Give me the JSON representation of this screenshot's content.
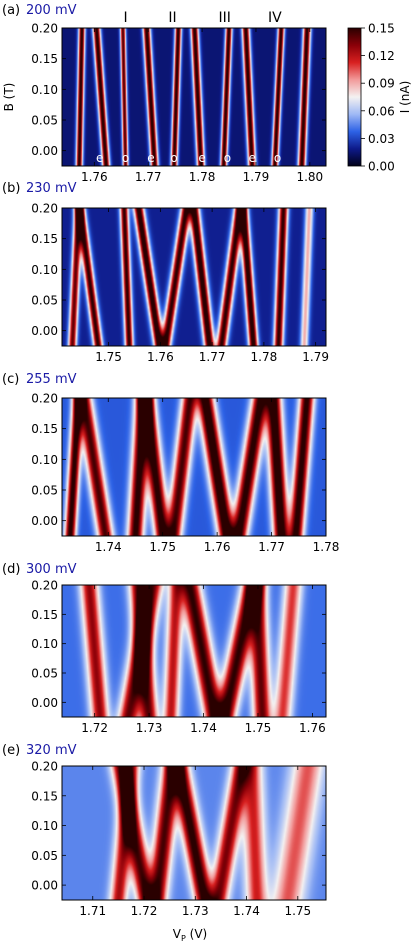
{
  "chart_data": [
    {
      "type": "heatmap",
      "panel_letter": "(a)",
      "bias_label": "200 mV",
      "xlabel": "",
      "ylabel": "B (T)",
      "xlim": [
        1.754,
        1.803
      ],
      "ylim": [
        -0.025,
        0.2
      ],
      "xticks": [
        "1.76",
        "1.77",
        "1.78",
        "1.79",
        "1.80"
      ],
      "xtick_values": [
        1.76,
        1.77,
        1.78,
        1.79,
        1.8
      ],
      "yticks": [
        "0.20",
        "0.15",
        "0.10",
        "0.05",
        "0.00"
      ],
      "ytick_values": [
        0.2,
        0.15,
        0.1,
        0.05,
        0.0
      ],
      "roman_labels": [
        {
          "text": "I",
          "x": 1.7658
        },
        {
          "text": "II",
          "x": 1.7745
        },
        {
          "text": "III",
          "x": 1.7842
        },
        {
          "text": "IV",
          "x": 1.7935
        }
      ],
      "parity_labels": [
        {
          "text": "e",
          "x": 1.761
        },
        {
          "text": "o",
          "x": 1.7658
        },
        {
          "text": "e",
          "x": 1.7705
        },
        {
          "text": "o",
          "x": 1.7748
        },
        {
          "text": "e",
          "x": 1.78
        },
        {
          "text": "o",
          "x": 1.7847
        },
        {
          "text": "e",
          "x": 1.7893
        },
        {
          "text": "o",
          "x": 1.794
        }
      ],
      "resonances": [
        {
          "x0": 1.7572,
          "dx": 0.0005,
          "w": 0.0006,
          "a": 0.14
        },
        {
          "x0": 1.7622,
          "dx": -0.0018,
          "w": 0.0007,
          "a": 0.14
        },
        {
          "x0": 1.7658,
          "dx": -0.0005,
          "w": 0.0005,
          "a": 0.13
        },
        {
          "x0": 1.7712,
          "dx": -0.0015,
          "w": 0.0007,
          "a": 0.14
        },
        {
          "x0": 1.7748,
          "dx": 0.0008,
          "w": 0.0006,
          "a": 0.14
        },
        {
          "x0": 1.7798,
          "dx": -0.0012,
          "w": 0.0007,
          "a": 0.14
        },
        {
          "x0": 1.784,
          "dx": 0.001,
          "w": 0.0006,
          "a": 0.14
        },
        {
          "x0": 1.7893,
          "dx": -0.0012,
          "w": 0.0007,
          "a": 0.14
        },
        {
          "x0": 1.7935,
          "dx": 0.0012,
          "w": 0.0006,
          "a": 0.14
        },
        {
          "x0": 1.7985,
          "dx": 0.001,
          "w": 0.0007,
          "a": 0.14
        }
      ],
      "background": 0.015
    },
    {
      "type": "heatmap",
      "panel_letter": "(b)",
      "bias_label": "230 mV",
      "xlabel": "",
      "ylabel": "",
      "xlim": [
        1.741,
        1.792
      ],
      "ylim": [
        -0.025,
        0.2
      ],
      "xticks": [
        "1.75",
        "1.76",
        "1.77",
        "1.78",
        "1.79"
      ],
      "xtick_values": [
        1.75,
        1.76,
        1.77,
        1.78,
        1.79
      ],
      "yticks": [
        "0.20",
        "0.15",
        "0.10",
        "0.05",
        "0.00"
      ],
      "ytick_values": [
        0.2,
        0.15,
        0.1,
        0.05,
        0.0
      ],
      "resonances": [
        {
          "x0": 1.743,
          "dx": 0.0012,
          "w": 0.0008,
          "a": 0.12
        },
        {
          "x0": 1.748,
          "dx": -0.0035,
          "w": 0.0009,
          "a": 0.13
        },
        {
          "x0": 1.754,
          "dx": -0.001,
          "w": 0.0008,
          "a": 0.13
        },
        {
          "x0": 1.7598,
          "dx": -0.004,
          "w": 0.001,
          "a": 0.14
        },
        {
          "x0": 1.761,
          "dx": 0.004,
          "w": 0.001,
          "a": 0.13
        },
        {
          "x0": 1.7695,
          "dx": -0.003,
          "w": 0.001,
          "a": 0.14
        },
        {
          "x0": 1.7718,
          "dx": 0.0035,
          "w": 0.001,
          "a": 0.13
        },
        {
          "x0": 1.778,
          "dx": -0.002,
          "w": 0.0009,
          "a": 0.14
        },
        {
          "x0": 1.7828,
          "dx": 0.001,
          "w": 0.0009,
          "a": 0.13
        },
        {
          "x0": 1.7878,
          "dx": 0.001,
          "w": 0.0008,
          "a": 0.07
        }
      ],
      "background": 0.02
    },
    {
      "type": "heatmap",
      "panel_letter": "(c)",
      "bias_label": "255 mV",
      "xlabel": "",
      "ylabel": "",
      "xlim": [
        1.7315,
        1.78
      ],
      "ylim": [
        -0.025,
        0.2
      ],
      "xticks": [
        "1.74",
        "1.75",
        "1.76",
        "1.77",
        "1.78"
      ],
      "xtick_values": [
        1.74,
        1.75,
        1.76,
        1.77,
        1.78
      ],
      "yticks": [
        "0.20",
        "0.15",
        "0.10",
        "0.05",
        "0.00"
      ],
      "ytick_values": [
        0.2,
        0.15,
        0.1,
        0.05,
        0.0
      ],
      "resonances": [
        {
          "x0": 1.733,
          "dx": 0.0015,
          "w": 0.001,
          "a": 0.12
        },
        {
          "x0": 1.7395,
          "dx": -0.004,
          "w": 0.0014,
          "a": 0.11
        },
        {
          "x0": 1.745,
          "dx": 0.0015,
          "w": 0.0014,
          "a": 0.12
        },
        {
          "x0": 1.75,
          "dx": -0.003,
          "w": 0.0014,
          "a": 0.12
        },
        {
          "x0": 1.752,
          "dx": 0.003,
          "w": 0.0014,
          "a": 0.11
        },
        {
          "x0": 1.7618,
          "dx": -0.004,
          "w": 0.0015,
          "a": 0.13
        },
        {
          "x0": 1.764,
          "dx": 0.004,
          "w": 0.0015,
          "a": 0.12
        },
        {
          "x0": 1.7718,
          "dx": -0.0015,
          "w": 0.0014,
          "a": 0.13
        },
        {
          "x0": 1.7745,
          "dx": 0.002,
          "w": 0.0013,
          "a": 0.12
        }
      ],
      "background": 0.035
    },
    {
      "type": "heatmap",
      "panel_letter": "(d)",
      "bias_label": "300 mV",
      "xlabel": "",
      "ylabel": "",
      "xlim": [
        1.714,
        1.7625
      ],
      "ylim": [
        -0.025,
        0.2
      ],
      "xticks": [
        "1.72",
        "1.73",
        "1.74",
        "1.75",
        "1.76"
      ],
      "xtick_values": [
        1.72,
        1.73,
        1.74,
        1.75,
        1.76
      ],
      "yticks": [
        "0.20",
        "0.15",
        "0.10",
        "0.05",
        "0.00"
      ],
      "ytick_values": [
        0.2,
        0.15,
        0.1,
        0.05,
        0.0
      ],
      "resonances": [
        {
          "x0": 1.721,
          "dx": -0.002,
          "w": 0.0016,
          "a": 0.09
        },
        {
          "x0": 1.7262,
          "dx": 0.0045,
          "w": 0.0018,
          "a": 0.1
        },
        {
          "x0": 1.73,
          "dx": -0.002,
          "w": 0.0016,
          "a": 0.1
        },
        {
          "x0": 1.734,
          "dx": 0.001,
          "w": 0.0014,
          "a": 0.08
        },
        {
          "x0": 1.742,
          "dx": -0.0045,
          "w": 0.0018,
          "a": 0.11
        },
        {
          "x0": 1.744,
          "dx": 0.005,
          "w": 0.0018,
          "a": 0.11
        },
        {
          "x0": 1.7508,
          "dx": -0.001,
          "w": 0.0016,
          "a": 0.1
        },
        {
          "x0": 1.7545,
          "dx": 0.002,
          "w": 0.0016,
          "a": 0.07
        }
      ],
      "background": 0.04
    },
    {
      "type": "heatmap",
      "panel_letter": "(e)",
      "bias_label": "320 mV",
      "xlabel": "V",
      "xlabel_sub": "P",
      "xlabel_unit": " (V)",
      "ylabel": "",
      "xlim": [
        1.704,
        1.7555
      ],
      "ylim": [
        -0.025,
        0.2
      ],
      "xticks": [
        "1.71",
        "1.72",
        "1.73",
        "1.74",
        "1.75"
      ],
      "xtick_values": [
        1.71,
        1.72,
        1.73,
        1.74,
        1.75
      ],
      "yticks": [
        "0.20",
        "0.15",
        "0.10",
        "0.05",
        "0.00"
      ],
      "ytick_values": [
        0.2,
        0.15,
        0.1,
        0.05,
        0.0
      ],
      "resonances": [
        {
          "x0": 1.715,
          "dx": 0.0025,
          "w": 0.0016,
          "a": 0.08
        },
        {
          "x0": 1.7205,
          "dx": -0.005,
          "w": 0.0018,
          "a": 0.1
        },
        {
          "x0": 1.7225,
          "dx": 0.003,
          "w": 0.0018,
          "a": 0.1
        },
        {
          "x0": 1.7318,
          "dx": -0.005,
          "w": 0.0018,
          "a": 0.11
        },
        {
          "x0": 1.7345,
          "dx": 0.0045,
          "w": 0.0018,
          "a": 0.09
        },
        {
          "x0": 1.742,
          "dx": -0.001,
          "w": 0.002,
          "a": 0.07
        },
        {
          "x0": 1.748,
          "dx": 0.004,
          "w": 0.003,
          "a": 0.06
        }
      ],
      "background": 0.045
    }
  ],
  "colorbar": {
    "label": "I (nA)",
    "ticks": [
      "0.15",
      "0.12",
      "0.09",
      "0.06",
      "0.03",
      "0.00"
    ],
    "tick_values": [
      0.15,
      0.12,
      0.09,
      0.06,
      0.03,
      0.0
    ],
    "range": [
      0.0,
      0.15
    ],
    "colormap": "seismic-like",
    "stops": [
      "#000018",
      "#0e1a8a",
      "#2d62e6",
      "#9fb9f5",
      "#f4f1f1",
      "#f29a9a",
      "#d82020",
      "#8a0008",
      "#2a0000"
    ]
  },
  "colors": {
    "panel_label": "#1a1aa6",
    "text": "#000000",
    "white_label": "#ffffff"
  }
}
